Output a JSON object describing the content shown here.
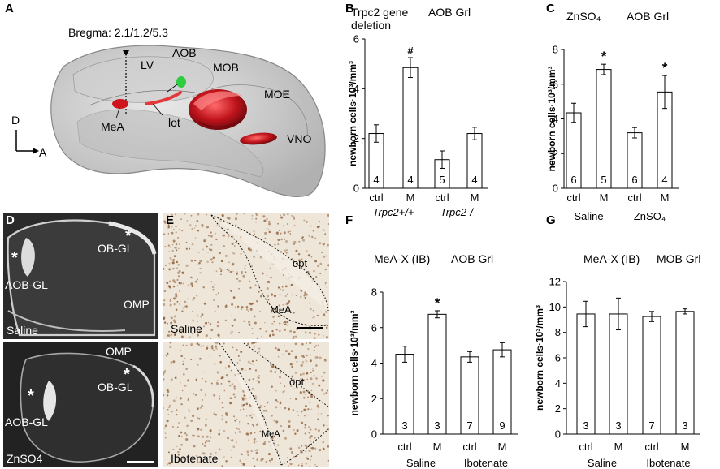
{
  "panels": {
    "A": {
      "letter": "A",
      "bregma": "Bregma: 2.1/1.2/5.3",
      "labels": {
        "lv": "LV",
        "aob": "AOB",
        "mob": "MOB",
        "moe": "MOE",
        "mea": "MeA",
        "lot": "lot",
        "vno": "VNO"
      },
      "axis_d": "D",
      "axis_a": "A"
    },
    "D": {
      "letter": "D",
      "top": {
        "aob": "AOB-GL",
        "ob": "OB-GL",
        "treatment": "Saline",
        "stain": "OMP",
        "star": "*"
      },
      "bottom": {
        "aob": "AOB-GL",
        "ob": "OB-GL",
        "treatment": "ZnSO4",
        "stain": "OMP",
        "star": "*"
      }
    },
    "E": {
      "letter": "E",
      "top": {
        "treatment": "Saline",
        "opt": "opt",
        "mea": "MeA"
      },
      "bottom": {
        "treatment": "Ibotenate",
        "opt": "opt",
        "mea": "MeA"
      }
    }
  },
  "colors": {
    "bar_fill": "#ffffff",
    "bar_stroke": "#000000",
    "red_struct": "#c0141c",
    "green_struct": "#2ecc40",
    "fluor_bg": "#262626",
    "histo_bg": "#efe6da",
    "histo_cell": "#8a5a33"
  },
  "chart_data": [
    {
      "panel": "B",
      "type": "bar",
      "title_left": [
        "Trpc2 gene",
        "deletion"
      ],
      "title_right": "AOB Grl",
      "ylabel": "newborn cells·10³/mm³",
      "ylim": [
        0,
        6
      ],
      "yticks": [
        0,
        2,
        4,
        6
      ],
      "categories": [
        "ctrl",
        "M",
        "ctrl",
        "M"
      ],
      "groups": [
        "Trpc2+/+",
        "Trpc2-/-"
      ],
      "values": [
        2.2,
        4.85,
        1.15,
        2.2
      ],
      "errors": [
        0.35,
        0.4,
        0.35,
        0.25
      ],
      "n": [
        "4",
        "4",
        "5",
        "4"
      ],
      "marks": [
        "",
        "#",
        "",
        ""
      ]
    },
    {
      "panel": "C",
      "type": "bar",
      "title_left": [
        "ZnSO₄"
      ],
      "title_right": "AOB Grl",
      "ylabel": "newborn cells·10³/mm³",
      "ylim": [
        0,
        8
      ],
      "yticks": [
        0,
        2,
        4,
        6,
        8
      ],
      "categories": [
        "ctrl",
        "M",
        "ctrl",
        "M"
      ],
      "groups": [
        "Saline",
        "ZnSO₄"
      ],
      "values": [
        4.35,
        6.85,
        3.2,
        5.55
      ],
      "errors": [
        0.55,
        0.3,
        0.3,
        0.95
      ],
      "n": [
        "6",
        "5",
        "6",
        "4"
      ],
      "marks": [
        "",
        "*",
        "",
        "*"
      ]
    },
    {
      "panel": "F",
      "type": "bar",
      "title_left": [
        "MeA-X (IB)"
      ],
      "title_right": "AOB Grl",
      "ylabel": "newborn cells·10³/mm³",
      "ylim": [
        0,
        8
      ],
      "yticks": [
        0,
        2,
        4,
        6,
        8
      ],
      "categories": [
        "ctrl",
        "M",
        "ctrl",
        "M"
      ],
      "groups": [
        "Saline",
        "Ibotenate"
      ],
      "values": [
        4.5,
        6.75,
        4.35,
        4.75
      ],
      "errors": [
        0.45,
        0.2,
        0.3,
        0.4
      ],
      "n": [
        "3",
        "3",
        "7",
        "9"
      ],
      "marks": [
        "",
        "*",
        "",
        ""
      ]
    },
    {
      "panel": "G",
      "type": "bar",
      "title_left": [
        "MeA-X (IB)"
      ],
      "title_right": "MOB Grl",
      "ylabel": "newborn cells·10³/mm³",
      "ylim": [
        0,
        12
      ],
      "yticks": [
        0,
        2,
        4,
        6,
        8,
        10,
        12
      ],
      "categories": [
        "ctrl",
        "M",
        "ctrl",
        "M"
      ],
      "groups": [
        "Saline",
        "Ibotenate"
      ],
      "values": [
        9.45,
        9.45,
        9.25,
        9.65
      ],
      "errors": [
        1.0,
        1.25,
        0.4,
        0.2
      ],
      "n": [
        "3",
        "3",
        "7",
        "3"
      ],
      "marks": [
        "",
        "",
        "",
        ""
      ]
    }
  ]
}
